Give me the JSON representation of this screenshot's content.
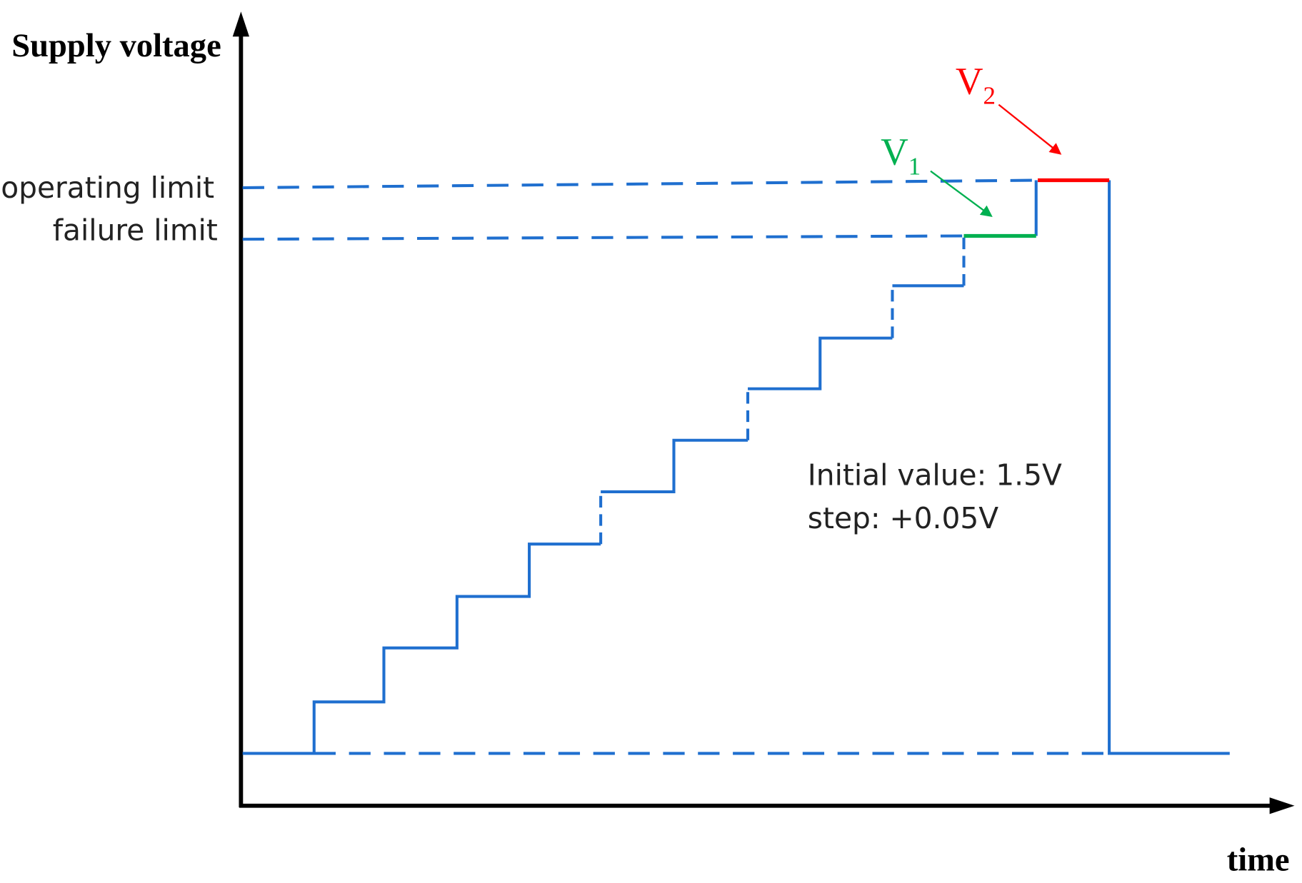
{
  "axes": {
    "y_label": "Supply voltage",
    "x_label": "time"
  },
  "levels": {
    "operating": "operating limit",
    "failure": "failure limit"
  },
  "markers": {
    "v1": {
      "base": "V",
      "sub": "1"
    },
    "v2": {
      "base": "V",
      "sub": "2"
    }
  },
  "annotation": {
    "lines": [
      "Initial value: 1.5V",
      "step: +0.05V"
    ]
  }
}
